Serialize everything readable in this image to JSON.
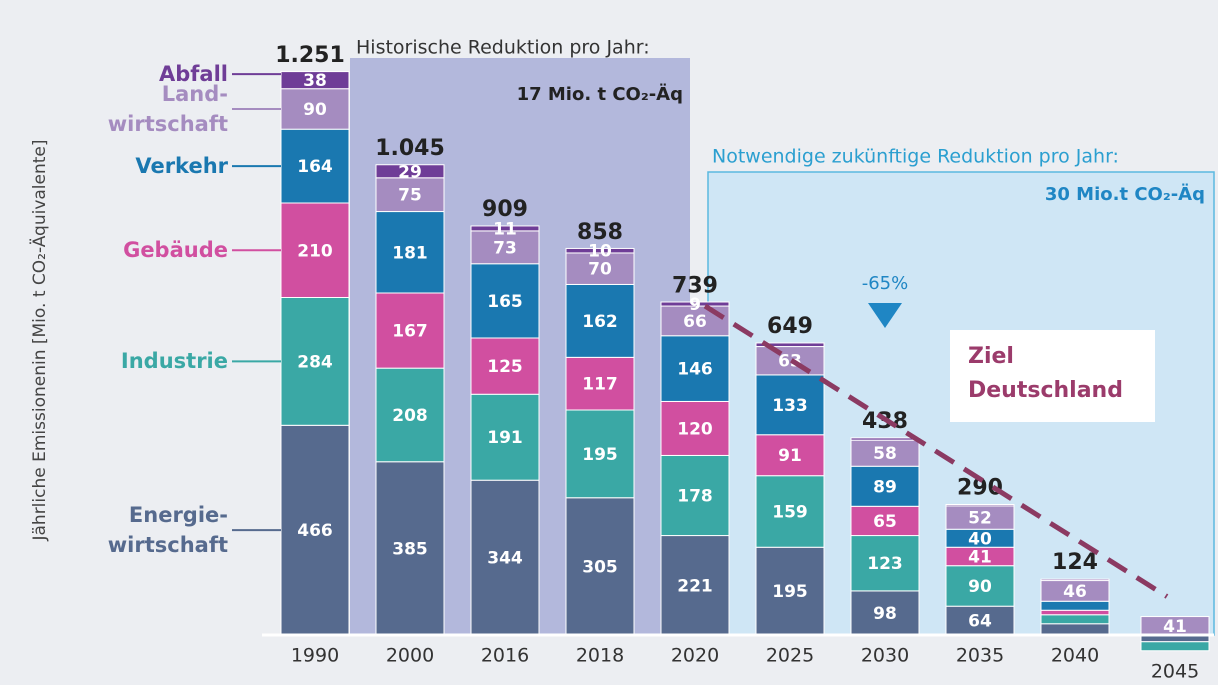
{
  "chart_data": {
    "type": "stacked_bar",
    "y_axis_label": "Jährliche Emissionenin [Mio. t CO₂-Äquivalente]",
    "categories": [
      "1990",
      "2000",
      "2016",
      "2018",
      "2020",
      "2025",
      "2030",
      "2035",
      "2040",
      "2045"
    ],
    "ylim": [
      -60,
      1300
    ],
    "series": [
      {
        "name": "Energie-\nwirtschaft",
        "color": "#566a8e",
        "values": [
          466,
          385,
          344,
          305,
          221,
          195,
          98,
          64,
          25,
          -15
        ],
        "value_labels": [
          "466",
          "385",
          "344",
          "305",
          "221",
          "195",
          "98",
          "64",
          null,
          null
        ]
      },
      {
        "name": "Industrie",
        "color": "#3aa8a5",
        "values": [
          284,
          208,
          191,
          195,
          178,
          159,
          123,
          90,
          20,
          -20
        ],
        "value_labels": [
          "284",
          "208",
          "191",
          "195",
          "178",
          "159",
          "123",
          "90",
          null,
          null
        ]
      },
      {
        "name": "Gebäude",
        "color": "#d14fa0",
        "values": [
          210,
          167,
          125,
          117,
          120,
          91,
          65,
          41,
          10,
          0
        ],
        "value_labels": [
          "210",
          "167",
          "125",
          "117",
          "120",
          "91",
          "65",
          "41",
          null,
          null
        ]
      },
      {
        "name": "Verkehr",
        "color": "#1a78b0",
        "values": [
          164,
          181,
          165,
          162,
          146,
          133,
          89,
          40,
          20,
          0
        ],
        "value_labels": [
          "164",
          "181",
          "165",
          "162",
          "146",
          "133",
          "89",
          "40",
          null,
          null
        ]
      },
      {
        "name": "Land-\nwirtschaft",
        "color": "#a58cc0",
        "values": [
          90,
          75,
          73,
          70,
          66,
          63,
          58,
          52,
          46,
          41
        ],
        "value_labels": [
          "90",
          "75",
          "73",
          "70",
          "66",
          "63",
          "58",
          "52",
          "46",
          "41"
        ]
      },
      {
        "name": "Abfall",
        "color": "#6f3d97",
        "values": [
          38,
          29,
          11,
          10,
          9,
          8,
          5,
          3,
          3,
          0
        ],
        "value_labels": [
          "38",
          "29",
          "11",
          "10",
          "9",
          null,
          null,
          null,
          null,
          null
        ]
      }
    ],
    "totals": {
      "values": [
        1251,
        1045,
        909,
        858,
        739,
        649,
        438,
        290,
        124,
        null
      ],
      "value_labels": [
        "1.251",
        "1.045",
        "909",
        "858",
        "739",
        "649",
        "438",
        "290",
        "124",
        null
      ]
    },
    "annotations": {
      "historic": "Historische Reduktion pro Jahr:",
      "historic_value": "17 Mio. t CO₂-Äq",
      "future": "Notwendige zukünftige Reduktion pro Jahr:",
      "future_value": "30 Mio.t CO₂-Äq",
      "reduction": "-65%",
      "target": "Ziel\nDeutschland"
    }
  }
}
